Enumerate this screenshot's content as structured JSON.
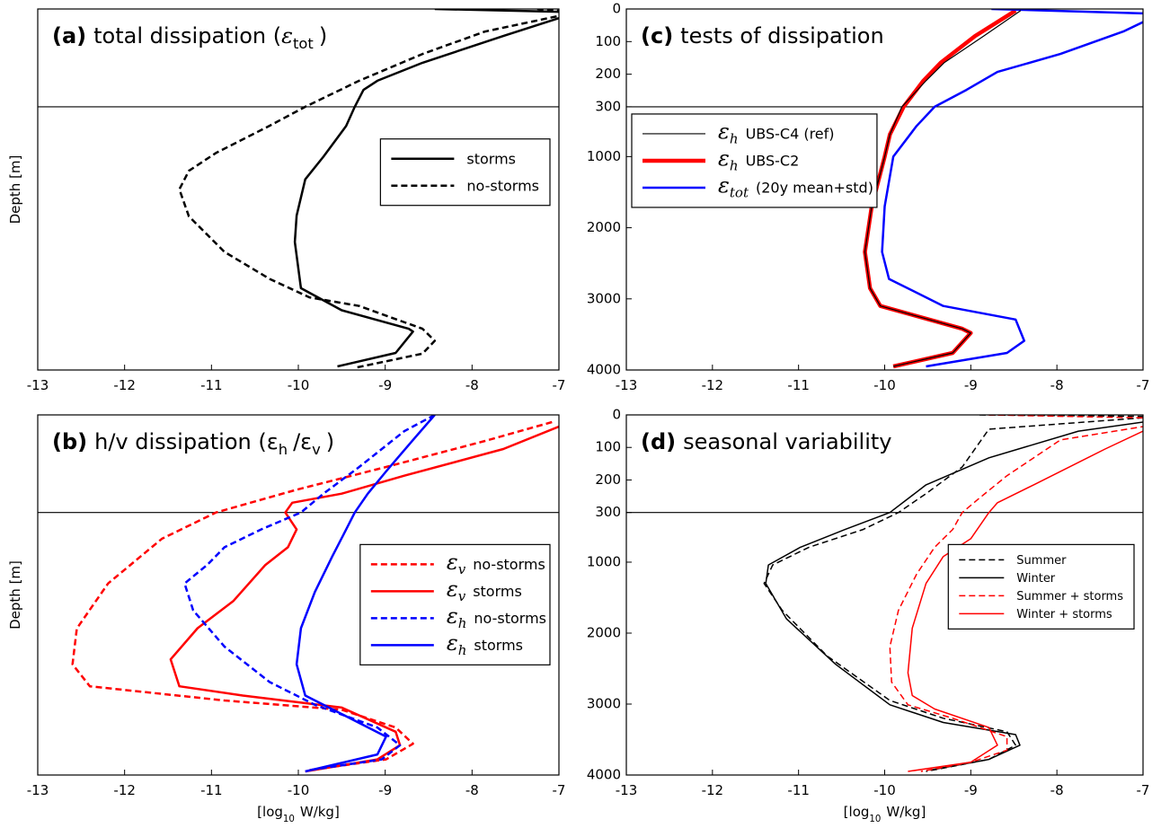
{
  "chart_data": [
    {
      "type": "line",
      "label": "(a)",
      "title": [
        {
          "t": "total dissipation ("
        },
        {
          "t": "ε",
          "sym": true
        },
        {
          "t": "tot",
          "sub": true
        },
        {
          "t": ")"
        }
      ],
      "ylabel": "Depth [m]",
      "xlim": [
        -13,
        -7
      ],
      "xticks": [
        -13,
        -12,
        -11,
        -10,
        -9,
        -8,
        -7
      ],
      "ylim": [
        0,
        4000
      ],
      "ybreak": 300,
      "legend": "center right",
      "series": [
        {
          "name": "storms",
          "color": "#000000",
          "width": 2.5,
          "dashed": false,
          "depth": [
            0,
            10,
            28,
            83,
            165,
            220,
            248,
            300,
            570,
            1000,
            1320,
            1830,
            2200,
            2850,
            3160,
            3420,
            3460,
            3760,
            3950
          ],
          "values": [
            -8.43,
            -6.8,
            -7,
            -7.64,
            -8.57,
            -9.09,
            -9.25,
            -9.35,
            -9.45,
            -9.71,
            -9.92,
            -10.02,
            -10.04,
            -9.97,
            -9.5,
            -8.73,
            -8.68,
            -8.88,
            -9.55
          ]
        },
        {
          "name": "no-storms",
          "color": "#000000",
          "width": 2.5,
          "dashed": true,
          "depth": [
            0,
            10,
            69,
            138,
            220,
            300,
            566,
            950,
            1200,
            1460,
            1840,
            2340,
            2720,
            2980,
            3100,
            3420,
            3590,
            3770,
            3970
          ],
          "values": [
            -7.25,
            -6.8,
            -7.85,
            -8.57,
            -9.3,
            -9.92,
            -10.33,
            -10.95,
            -11.26,
            -11.37,
            -11.26,
            -10.85,
            -10.33,
            -9.87,
            -9.3,
            -8.57,
            -8.43,
            -8.57,
            -9.35
          ]
        }
      ]
    },
    {
      "type": "line",
      "label": "(b)",
      "title": [
        {
          "t": "h/v dissipation ("
        },
        {
          "t": "ε"
        },
        {
          "t": "h",
          "sub": true
        },
        {
          "t": "/ε"
        },
        {
          "t": "v",
          "sub": true
        },
        {
          "t": ")"
        }
      ],
      "ylabel": "Depth [m]",
      "xlabel": [
        {
          "t": "[log"
        },
        {
          "t": "10",
          "sub": true
        },
        {
          "t": "W/kg]"
        }
      ],
      "xlim": [
        -13,
        -7
      ],
      "xticks": [
        -13,
        -12,
        -11,
        -10,
        -9,
        -8,
        -7
      ],
      "ylim": [
        0,
        4000
      ],
      "ybreak": 300,
      "legend": "center right",
      "series": [
        {
          "name": "no-storms",
          "symbol": "ε",
          "symbol_sub": "v",
          "color": "#ff0000",
          "width": 2.5,
          "dashed": true,
          "depth": [
            22,
            80,
            160,
            230,
            300,
            670,
            1300,
            1935,
            2440,
            2750,
            2950,
            3080,
            3330,
            3560,
            3780,
            3930
          ],
          "values": [
            -7.08,
            -7.85,
            -8.99,
            -10.02,
            -10.95,
            -11.57,
            -12.19,
            -12.55,
            -12.6,
            -12.4,
            -10.85,
            -9.5,
            -8.88,
            -8.68,
            -8.99,
            -9.87
          ]
        },
        {
          "name": "storms",
          "symbol": "ε",
          "symbol_sub": "v",
          "color": "#ff0000",
          "width": 2.5,
          "dashed": false,
          "depth": [
            36,
            105,
            187,
            242,
            270,
            300,
            540,
            790,
            1040,
            1550,
            1930,
            2370,
            2750,
            2880,
            3050,
            3390,
            3580,
            3780,
            3950
          ],
          "values": [
            -7,
            -7.64,
            -8.78,
            -9.5,
            -10.07,
            -10.15,
            -10.02,
            -10.12,
            -10.38,
            -10.75,
            -11.16,
            -11.47,
            -11.37,
            -10.64,
            -9.5,
            -8.88,
            -8.83,
            -9.09,
            -9.92
          ]
        },
        {
          "name": "no-storms",
          "symbol": "ε",
          "symbol_sub": "h",
          "color": "#0000ff",
          "width": 2.5,
          "dashed": true,
          "depth": [
            0,
            50,
            160,
            242,
            300,
            540,
            790,
            1040,
            1300,
            1680,
            2190,
            2690,
            3010,
            3330,
            3580,
            3780,
            3930
          ],
          "values": [
            -8.43,
            -8.78,
            -9.3,
            -9.71,
            -9.97,
            -10.43,
            -10.85,
            -11.05,
            -11.31,
            -11.21,
            -10.85,
            -10.33,
            -9.81,
            -9.09,
            -8.83,
            -9.04,
            -9.87
          ]
        },
        {
          "name": "storms",
          "symbol": "ε",
          "symbol_sub": "h",
          "color": "#0000ff",
          "width": 2.5,
          "dashed": false,
          "depth": [
            0,
            77,
            174,
            242,
            300,
            540,
            920,
            1420,
            1930,
            2440,
            2880,
            3140,
            3460,
            3710,
            3950
          ],
          "values": [
            -8.43,
            -8.68,
            -8.99,
            -9.2,
            -9.35,
            -9.45,
            -9.61,
            -9.81,
            -9.97,
            -10.02,
            -9.92,
            -9.5,
            -8.99,
            -9.09,
            -9.92
          ]
        }
      ]
    },
    {
      "type": "line",
      "label": "(c)",
      "title": [
        {
          "t": "tests of dissipation"
        }
      ],
      "xlim": [
        -13,
        -7
      ],
      "xticks": [
        -13,
        -12,
        -11,
        -10,
        -9,
        -8,
        -7
      ],
      "ylim": [
        0,
        4000
      ],
      "ybreak": 300,
      "yticks": [
        0,
        100,
        200,
        300,
        1000,
        2000,
        3000,
        4000
      ],
      "legend": "upper left",
      "series": [
        {
          "name": "UBS-C4 (ref)",
          "symbol": "ε",
          "symbol_sub": "h",
          "color": "#000000",
          "width": 1.2,
          "dashed": false,
          "depth": [
            5,
            83,
            165,
            220,
            300,
            690,
            1000,
            1700,
            2340,
            2850,
            3100,
            3420,
            3480,
            3760,
            3950
          ],
          "values": [
            -8.42,
            -8.85,
            -9.31,
            -9.52,
            -9.8,
            -9.94,
            -10,
            -10.15,
            -10.23,
            -10.17,
            -10.05,
            -9.1,
            -9,
            -9.21,
            -9.9
          ]
        },
        {
          "name": "UBS-C2",
          "symbol": "ε",
          "symbol_sub": "h",
          "color": "#ff0000",
          "width": 4.5,
          "dashed": false,
          "depth": [
            5,
            83,
            165,
            220,
            300,
            690,
            1000,
            1700,
            2340,
            2850,
            3100,
            3420,
            3480,
            3760,
            3950
          ],
          "values": [
            -8.48,
            -8.95,
            -9.35,
            -9.55,
            -9.78,
            -9.94,
            -10,
            -10.15,
            -10.23,
            -10.17,
            -10.05,
            -9.1,
            -9,
            -9.21,
            -9.9
          ]
        },
        {
          "name": "(20y mean+std)",
          "symbol": "ε",
          "symbol_sub": "tot",
          "color": "#0000ff",
          "width": 2.5,
          "dashed": false,
          "depth": [
            0,
            15,
            69,
            138,
            193,
            248,
            300,
            570,
            1000,
            1700,
            2340,
            2720,
            3100,
            3290,
            3590,
            3760,
            3950
          ],
          "values": [
            -8.76,
            -6.8,
            -7.23,
            -7.96,
            -8.69,
            -9.05,
            -9.42,
            -9.63,
            -9.9,
            -10,
            -10.03,
            -9.95,
            -9.32,
            -8.48,
            -8.38,
            -8.58,
            -9.52
          ]
        }
      ]
    },
    {
      "type": "line",
      "label": "(d)",
      "title": [
        {
          "t": "seasonal variability"
        }
      ],
      "xlabel": [
        {
          "t": "[log"
        },
        {
          "t": "10",
          "sub": true
        },
        {
          "t": "W/kg]"
        }
      ],
      "xlim": [
        -13,
        -7
      ],
      "xticks": [
        -13,
        -12,
        -11,
        -10,
        -9,
        -8,
        -7
      ],
      "ylim": [
        0,
        4000
      ],
      "ybreak": 300,
      "yticks": [
        0,
        100,
        200,
        300,
        1000,
        2000,
        3000,
        4000
      ],
      "legend": "center right",
      "series": [
        {
          "name": "Summer",
          "color": "#000000",
          "width": 1.5,
          "dashed": true,
          "depth": [
            0,
            5,
            44,
            160,
            242,
            300,
            540,
            790,
            1040,
            1300,
            1680,
            2320,
            2950,
            3200,
            3390,
            3580,
            3780,
            3950
          ],
          "values": [
            -8.9,
            -6.8,
            -8.79,
            -9.1,
            -9.52,
            -9.84,
            -10.25,
            -10.88,
            -11.3,
            -11.4,
            -11.19,
            -10.67,
            -9.94,
            -9.32,
            -8.58,
            -8.48,
            -8.79,
            -9.52
          ]
        },
        {
          "name": "Winter",
          "color": "#000000",
          "width": 1.5,
          "dashed": false,
          "depth": [
            22,
            50,
            132,
            215,
            300,
            540,
            790,
            1040,
            1300,
            1800,
            2440,
            3010,
            3260,
            3430,
            3580,
            3780,
            3930
          ],
          "values": [
            -7,
            -7.75,
            -8.79,
            -9.52,
            -9.94,
            -10.46,
            -10.98,
            -11.35,
            -11.38,
            -11.14,
            -10.57,
            -9.94,
            -9.32,
            -8.48,
            -8.43,
            -8.79,
            -9.47
          ]
        },
        {
          "name": "Summer + storms",
          "color": "#ff0000",
          "width": 1.5,
          "dashed": true,
          "depth": [
            0,
            10,
            36,
            77,
            187,
            256,
            300,
            540,
            790,
            1170,
            1680,
            2190,
            2690,
            3010,
            3200,
            3460,
            3650,
            3820,
            3950
          ],
          "values": [
            -8.8,
            -6.8,
            -7,
            -7.96,
            -8.58,
            -8.9,
            -9.1,
            -9.21,
            -9.42,
            -9.63,
            -9.84,
            -9.94,
            -9.92,
            -9.73,
            -9.21,
            -8.58,
            -8.58,
            -9,
            -9.58
          ]
        },
        {
          "name": "Winter + storms",
          "color": "#ff0000",
          "width": 1.5,
          "dashed": false,
          "depth": [
            50,
            105,
            215,
            270,
            300,
            670,
            920,
            1300,
            1930,
            2560,
            2880,
            3070,
            3330,
            3580,
            3820,
            3950
          ],
          "values": [
            -7,
            -7.44,
            -8.27,
            -8.69,
            -8.79,
            -9,
            -9.32,
            -9.52,
            -9.68,
            -9.73,
            -9.68,
            -9.42,
            -8.79,
            -8.69,
            -9,
            -9.73
          ]
        }
      ]
    }
  ]
}
